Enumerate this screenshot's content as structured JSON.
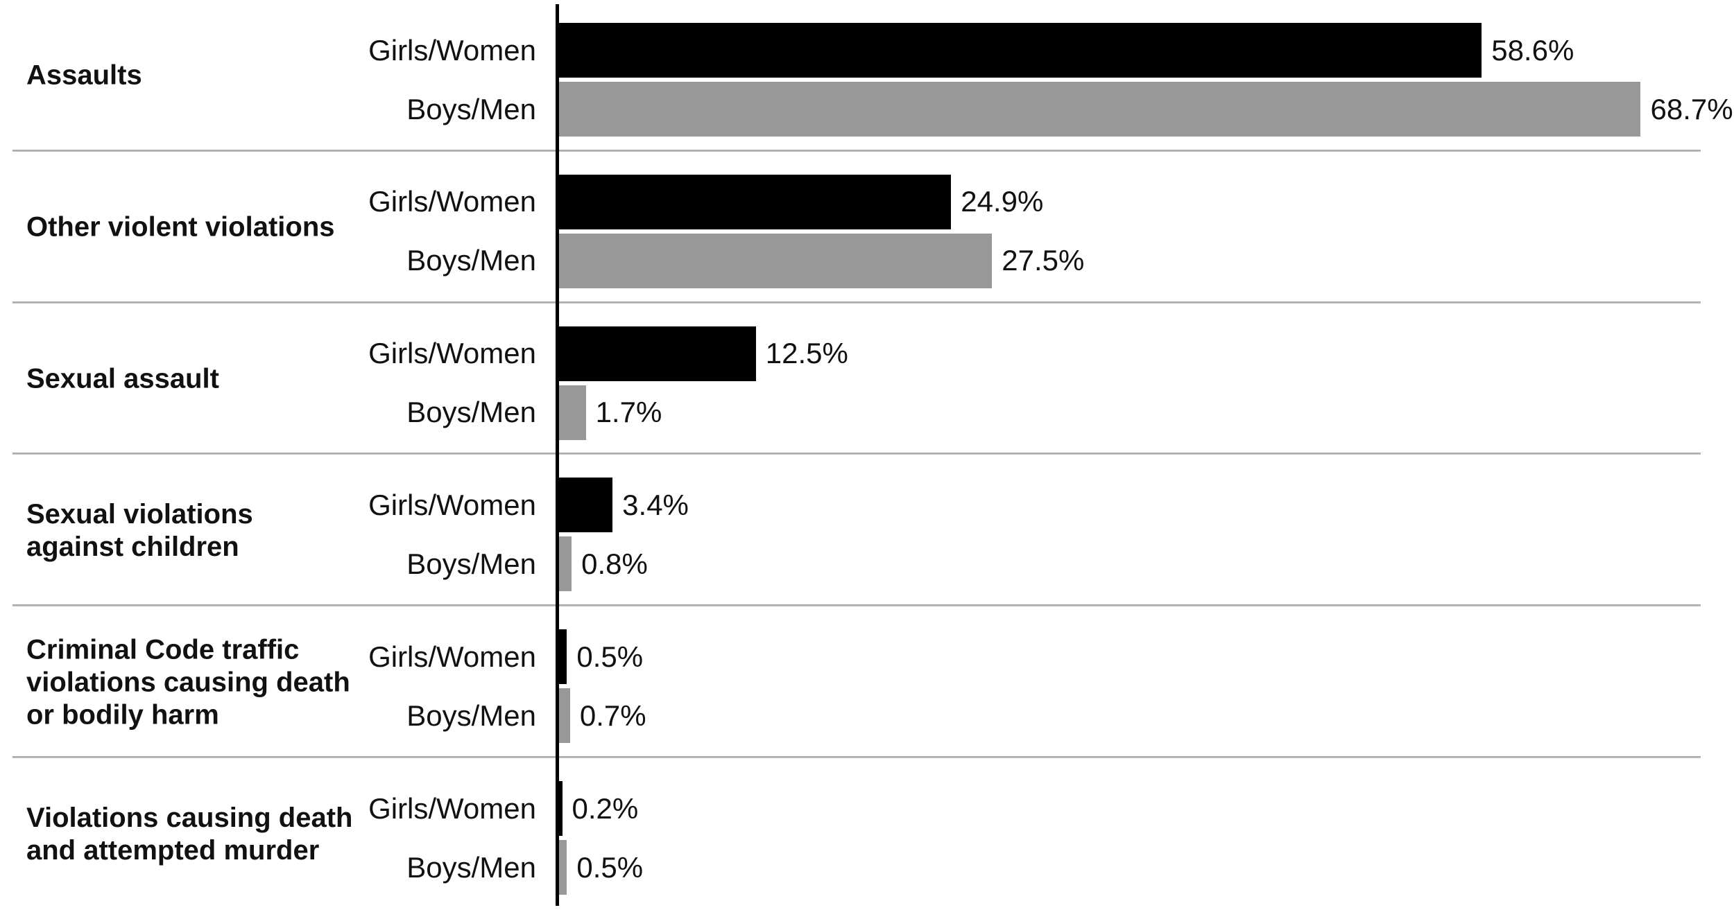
{
  "chart_data": {
    "type": "bar",
    "orientation": "horizontal",
    "title": "",
    "categories": [
      "Assaults",
      "Other violent violations",
      "Sexual assault",
      "Sexual violations\nagainst children",
      "Criminal Code traffic\nviolations causing death\nor bodily harm",
      "Violations causing death\nand attempted murder"
    ],
    "series": [
      {
        "name": "Girls/Women",
        "color": "#000000",
        "values": [
          58.6,
          24.9,
          12.5,
          3.4,
          0.5,
          0.2
        ]
      },
      {
        "name": "Boys/Men",
        "color": "#989898",
        "values": [
          68.7,
          27.5,
          1.7,
          0.8,
          0.7,
          0.5
        ]
      }
    ],
    "value_suffix": "%",
    "data_label_position": "outside-end",
    "xlim": [
      0,
      73
    ],
    "grid": false,
    "legend": "none",
    "axis_color": "#000000",
    "separator_color": "#A6A6A6",
    "background_color": "#FFFFFF"
  }
}
